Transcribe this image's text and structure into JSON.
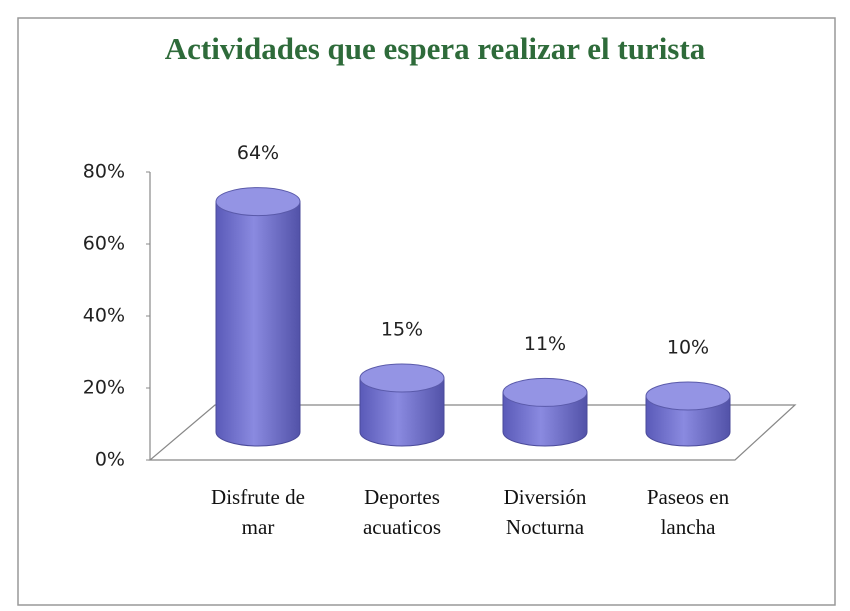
{
  "chart_data": {
    "type": "bar",
    "title": "Actividades que espera realizar el turista",
    "categories": [
      "Disfrute de mar",
      "Deportes acuaticos",
      "Diversión Nocturna",
      "Paseos en lancha"
    ],
    "values": [
      64,
      15,
      11,
      10
    ],
    "value_labels": [
      "64%",
      "15%",
      "11%",
      "10%"
    ],
    "color": "#7b7bd6",
    "ylim": [
      0,
      80
    ],
    "yticks": [
      {
        "value": 0,
        "label": "0%"
      },
      {
        "value": 20,
        "label": "20%"
      },
      {
        "value": 40,
        "label": "40%"
      },
      {
        "value": 60,
        "label": "60%"
      },
      {
        "value": 80,
        "label": "80%"
      }
    ]
  }
}
